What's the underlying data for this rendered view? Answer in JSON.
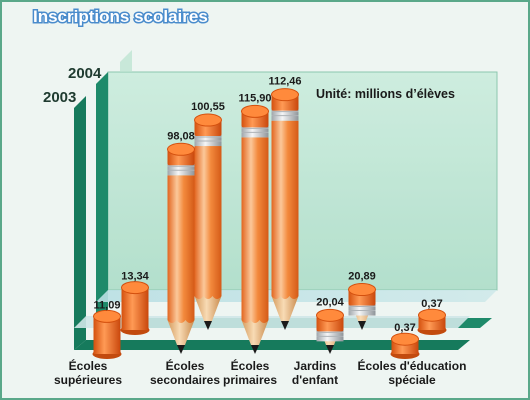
{
  "chart_data": {
    "type": "bar",
    "title": "Inscriptions scolaires",
    "unit_note": "Unité: millions d’élèves",
    "categories": [
      [
        "Écoles",
        "supérieures"
      ],
      [
        "Écoles",
        "secondaires"
      ],
      [
        "Écoles",
        "primaires"
      ],
      [
        "Jardins",
        "d'enfant"
      ],
      [
        "Écoles d'éducation",
        "spéciale"
      ]
    ],
    "series": [
      {
        "name": "2003",
        "values": [
          11.09,
          98.08,
          115.9,
          20.04,
          0.37
        ],
        "labels": [
          "11,09",
          "98,08",
          "115,90",
          "20,04",
          "0,37"
        ]
      },
      {
        "name": "2004",
        "values": [
          13.34,
          100.55,
          112.46,
          20.89,
          0.37
        ],
        "labels": [
          "13,34",
          "100,55",
          "112,46",
          "20,89",
          "0,37"
        ]
      }
    ],
    "ylim": [
      0,
      125
    ],
    "grid": false,
    "colors": {
      "pencil_body": "#f08a3c",
      "pencil_highlight": "#fbc89a",
      "eraser": "#f26c1e",
      "ferrule": "#cfd3d6",
      "wood_tip": "#f3c58e",
      "lead": "#1a1a1a",
      "wall": "#bfe6d4",
      "floor_band": "#1e8a6a",
      "title_color": "#ffffff",
      "title_outline": "#4a8ccc"
    }
  }
}
